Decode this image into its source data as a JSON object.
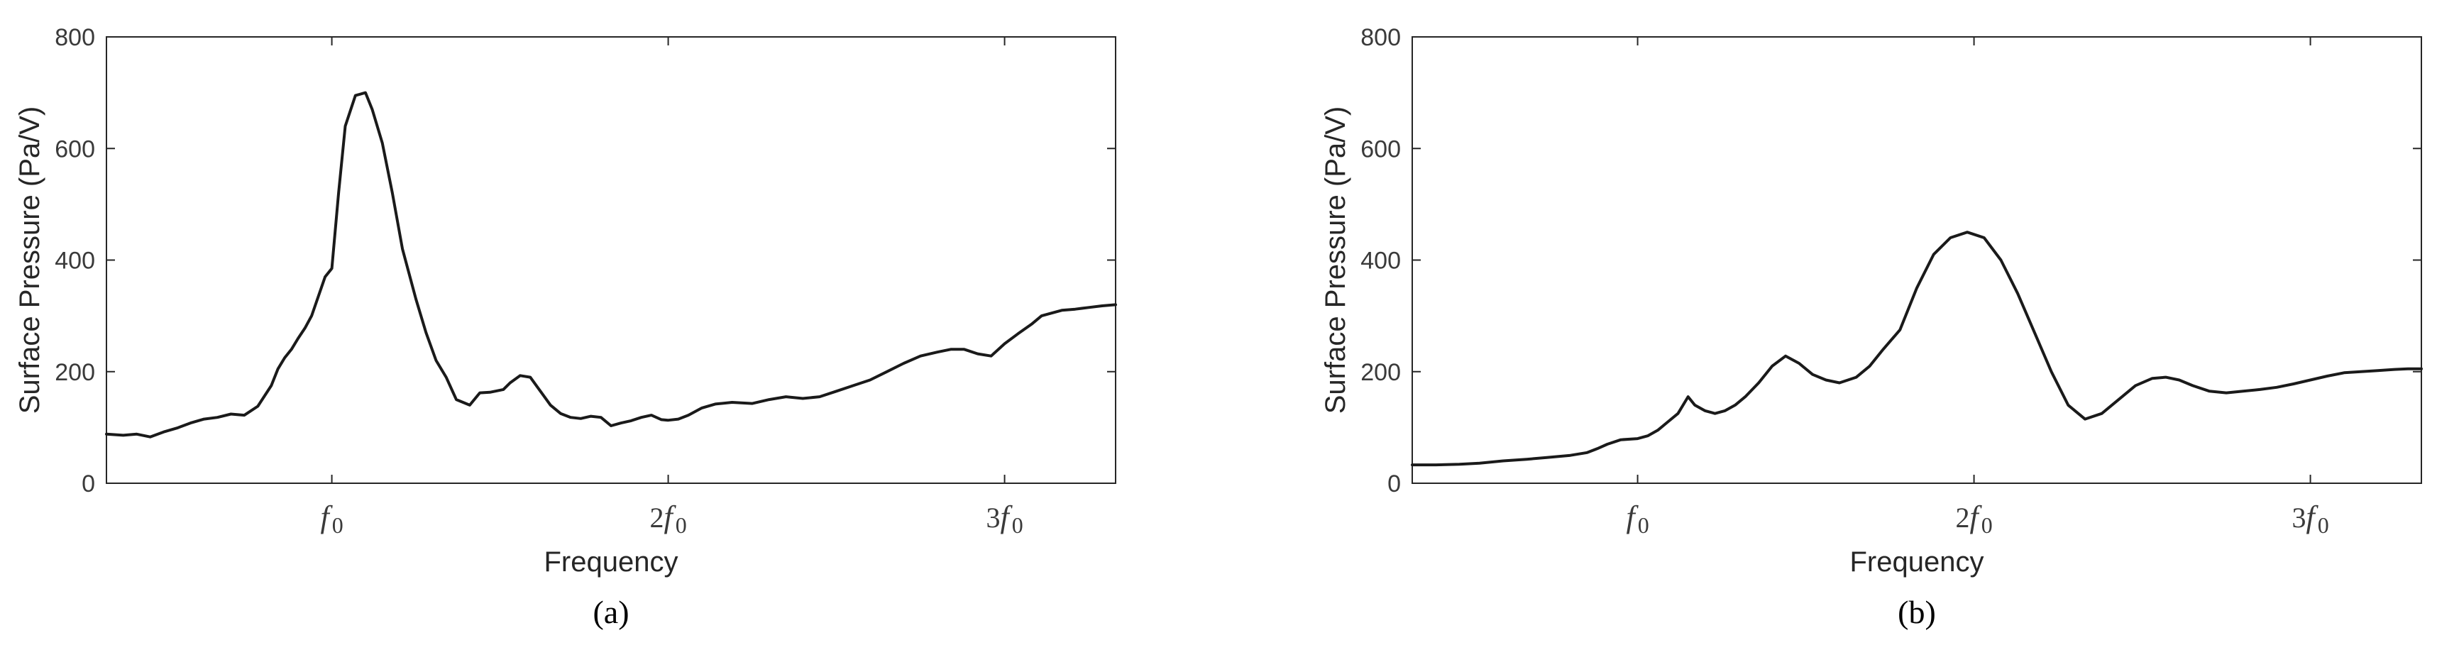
{
  "chart_data": [
    {
      "type": "line",
      "caption": "(a)",
      "title": "",
      "xlabel": "Frequency",
      "ylabel": "Surface Pressure (Pa/V)",
      "ylim": [
        0,
        800
      ],
      "xlim": [
        0.33,
        3.33
      ],
      "yticks": [
        0,
        200,
        400,
        600,
        800
      ],
      "xticks": [
        {
          "value": 1,
          "coef": "",
          "symbol": "f",
          "sub": "0"
        },
        {
          "value": 2,
          "coef": "2",
          "symbol": "f",
          "sub": "0"
        },
        {
          "value": 3,
          "coef": "3",
          "symbol": "f",
          "sub": "0"
        }
      ],
      "grid": false,
      "line_color": "#1a1a1a",
      "series": [
        {
          "x": [
            0.33,
            0.38,
            0.42,
            0.46,
            0.5,
            0.54,
            0.58,
            0.62,
            0.66,
            0.7,
            0.74,
            0.78,
            0.82,
            0.84,
            0.86,
            0.88,
            0.9,
            0.92,
            0.94,
            0.96,
            0.98,
            1.0,
            1.02,
            1.04,
            1.07,
            1.1,
            1.12,
            1.15,
            1.18,
            1.21,
            1.25,
            1.28,
            1.31,
            1.34,
            1.37,
            1.41,
            1.44,
            1.47,
            1.51,
            1.53,
            1.56,
            1.59,
            1.62,
            1.65,
            1.68,
            1.71,
            1.74,
            1.77,
            1.8,
            1.83,
            1.86,
            1.89,
            1.92,
            1.95,
            1.98,
            2.0,
            2.03,
            2.06,
            2.1,
            2.14,
            2.19,
            2.25,
            2.3,
            2.35,
            2.4,
            2.45,
            2.5,
            2.55,
            2.6,
            2.65,
            2.7,
            2.75,
            2.8,
            2.84,
            2.88,
            2.92,
            2.96,
            3.0,
            3.04,
            3.08,
            3.11,
            3.14,
            3.17,
            3.21,
            3.25,
            3.29,
            3.33
          ],
          "y": [
            88,
            86,
            88,
            83,
            92,
            99,
            108,
            115,
            118,
            124,
            122,
            138,
            175,
            205,
            225,
            240,
            260,
            278,
            300,
            335,
            370,
            385,
            520,
            640,
            695,
            700,
            670,
            610,
            520,
            420,
            330,
            270,
            220,
            190,
            150,
            140,
            162,
            163,
            168,
            180,
            193,
            190,
            165,
            140,
            125,
            118,
            116,
            120,
            118,
            103,
            108,
            112,
            118,
            122,
            114,
            113,
            115,
            122,
            135,
            142,
            145,
            143,
            150,
            155,
            152,
            155,
            165,
            175,
            185,
            200,
            215,
            228,
            235,
            240,
            240,
            232,
            228,
            250,
            268,
            285,
            300,
            305,
            310,
            312,
            315,
            318,
            320
          ],
          "name": ""
        }
      ]
    },
    {
      "type": "line",
      "caption": "(b)",
      "title": "",
      "xlabel": "Frequency",
      "ylabel": "Surface Pressure (Pa/V)",
      "ylim": [
        0,
        800
      ],
      "xlim": [
        0.33,
        3.33
      ],
      "yticks": [
        0,
        200,
        400,
        600,
        800
      ],
      "xticks": [
        {
          "value": 1,
          "coef": "",
          "symbol": "f",
          "sub": "0"
        },
        {
          "value": 2,
          "coef": "2",
          "symbol": "f",
          "sub": "0"
        },
        {
          "value": 3,
          "coef": "3",
          "symbol": "f",
          "sub": "0"
        }
      ],
      "grid": false,
      "line_color": "#1a1a1a",
      "series": [
        {
          "x": [
            0.33,
            0.4,
            0.47,
            0.53,
            0.6,
            0.67,
            0.73,
            0.8,
            0.85,
            0.88,
            0.91,
            0.95,
            1.0,
            1.03,
            1.06,
            1.09,
            1.12,
            1.15,
            1.17,
            1.2,
            1.23,
            1.26,
            1.29,
            1.32,
            1.36,
            1.4,
            1.44,
            1.48,
            1.52,
            1.56,
            1.6,
            1.65,
            1.69,
            1.73,
            1.78,
            1.83,
            1.88,
            1.93,
            1.98,
            2.03,
            2.08,
            2.13,
            2.18,
            2.23,
            2.28,
            2.33,
            2.38,
            2.43,
            2.48,
            2.53,
            2.57,
            2.61,
            2.65,
            2.7,
            2.75,
            2.8,
            2.85,
            2.9,
            2.95,
            3.0,
            3.05,
            3.1,
            3.15,
            3.2,
            3.25,
            3.29,
            3.33
          ],
          "y": [
            33,
            33,
            34,
            36,
            40,
            43,
            46,
            50,
            55,
            62,
            70,
            78,
            80,
            85,
            95,
            110,
            125,
            155,
            140,
            130,
            125,
            130,
            140,
            155,
            180,
            210,
            228,
            215,
            195,
            185,
            180,
            190,
            210,
            240,
            275,
            350,
            410,
            440,
            450,
            440,
            400,
            340,
            270,
            200,
            140,
            115,
            125,
            150,
            175,
            188,
            190,
            185,
            175,
            165,
            162,
            165,
            168,
            172,
            178,
            185,
            192,
            198,
            200,
            202,
            204,
            205,
            205
          ]
        }
      ]
    }
  ]
}
